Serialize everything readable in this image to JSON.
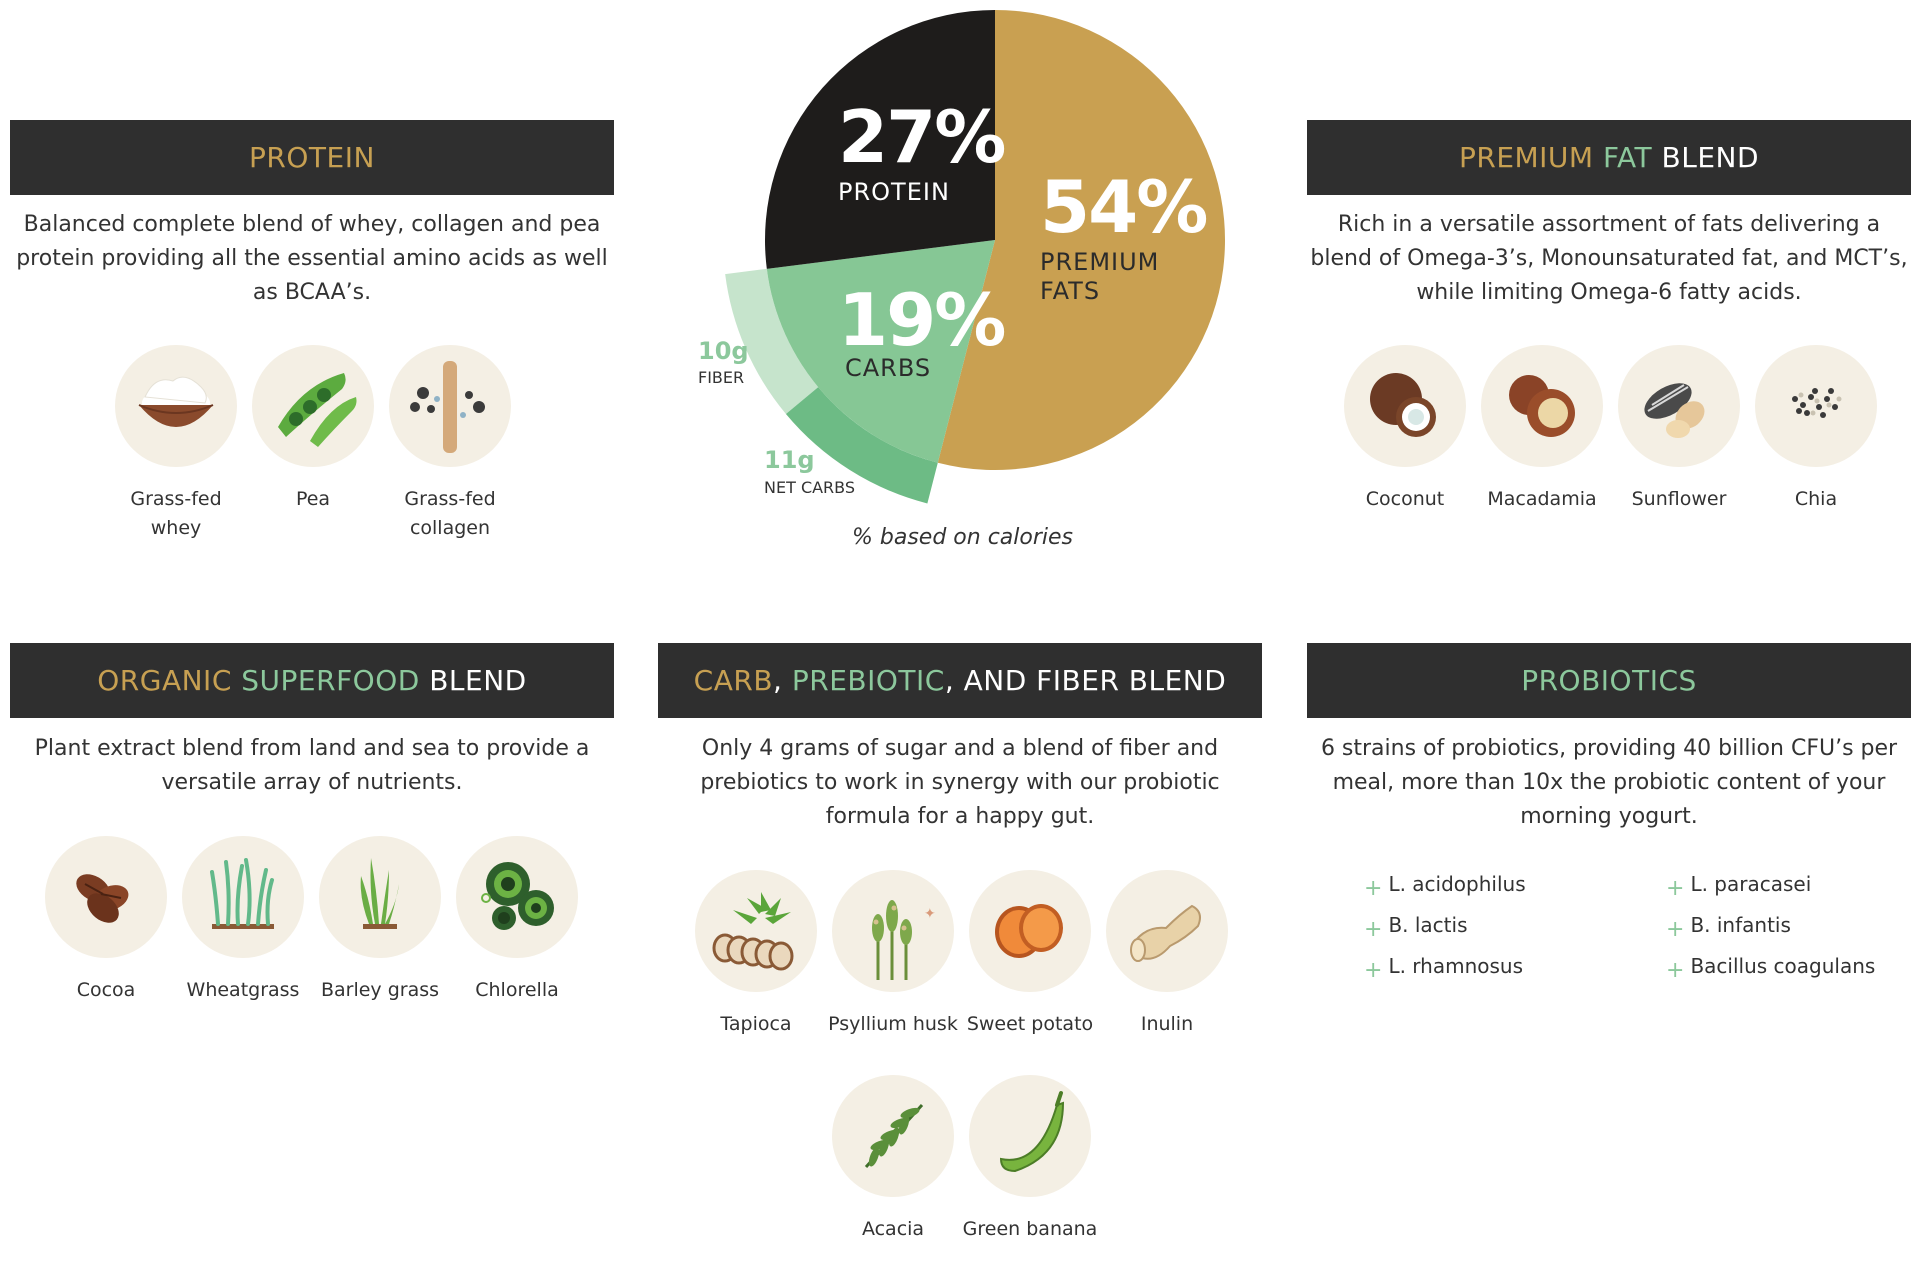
{
  "protein": {
    "title_parts": [
      {
        "text": "PROTEIN",
        "color": "gold"
      }
    ],
    "desc_lines": [
      "Balanced complete blend of whey, collagen and pea",
      "protein providing all the essential amino acids as well",
      "as BCAA’s."
    ],
    "items": [
      {
        "label": "Grass-fed\nwhey",
        "icon": "whey-bowl-icon"
      },
      {
        "label": "Pea",
        "icon": "pea-pod-icon"
      },
      {
        "label": "Grass-fed\ncollagen",
        "icon": "collagen-icon"
      }
    ]
  },
  "fats": {
    "title_parts": [
      {
        "text": "PREMIUM ",
        "color": "gold"
      },
      {
        "text": "FAT",
        "color": "green"
      },
      {
        "text": " BLEND",
        "color": "white"
      }
    ],
    "desc_lines": [
      "Rich in a versatile assortment of fats delivering a",
      "blend of Omega-3’s, Monounsaturated fat, and MCT’s,",
      "while limiting Omega-6 fatty acids."
    ],
    "items": [
      {
        "label": "Coconut",
        "icon": "coconut-icon"
      },
      {
        "label": "Macadamia",
        "icon": "macadamia-icon"
      },
      {
        "label": "Sunflower",
        "icon": "sunflower-seed-icon"
      },
      {
        "label": "Chia",
        "icon": "chia-seeds-icon"
      }
    ]
  },
  "superfood": {
    "title_parts": [
      {
        "text": "ORGANIC ",
        "color": "gold"
      },
      {
        "text": "SUPERFOOD",
        "color": "green"
      },
      {
        "text": " BLEND",
        "color": "white"
      }
    ],
    "desc_lines": [
      "Plant extract blend from land and sea to provide a",
      "versatile array of nutrients."
    ],
    "items": [
      {
        "label": "Cocoa",
        "icon": "cocoa-beans-icon"
      },
      {
        "label": "Wheatgrass",
        "icon": "wheatgrass-icon"
      },
      {
        "label": "Barley grass",
        "icon": "barley-grass-icon"
      },
      {
        "label": "Chlorella",
        "icon": "chlorella-icon"
      }
    ]
  },
  "carb": {
    "title_parts": [
      {
        "text": "CARB",
        "color": "gold"
      },
      {
        "text": ", ",
        "color": "white"
      },
      {
        "text": "PREBIOTIC",
        "color": "green"
      },
      {
        "text": ", AND FIBER BLEND",
        "color": "white"
      }
    ],
    "desc_lines": [
      "Only 4 grams of sugar and a blend of fiber and",
      "prebiotics to work in synergy with our probiotic",
      "formula for a happy gut."
    ],
    "items": [
      {
        "label": "Tapioca",
        "icon": "tapioca-icon"
      },
      {
        "label": "Psyllium husk",
        "icon": "psyllium-husk-icon"
      },
      {
        "label": "Sweet potato",
        "icon": "sweet-potato-icon"
      },
      {
        "label": "Inulin",
        "icon": "inulin-root-icon"
      },
      {
        "label": "Acacia",
        "icon": "acacia-leaf-icon"
      },
      {
        "label": "Green banana",
        "icon": "green-banana-icon"
      }
    ]
  },
  "probiotics": {
    "title_parts": [
      {
        "text": "PROBIOTICS",
        "color": "green"
      }
    ],
    "desc_lines": [
      "6 strains of probiotics, providing 40 billion CFU’s per",
      "meal, more than 10x the probiotic content of your",
      "morning yogurt."
    ],
    "strains": [
      "L. acidophilus",
      "L. paracasei",
      "B. lactis",
      "B. infantis",
      "L. rhamnosus",
      "Bacillus coagulans"
    ]
  },
  "colors": {
    "gold": "#c7a052",
    "green": "#8cc89c",
    "dark": "#1e1c1b",
    "header_bg": "#2f2f2f"
  },
  "chart_data": {
    "type": "pie",
    "slices": [
      {
        "label": "PREMIUM\nFATS",
        "value": 54,
        "display": "54%",
        "color": "#c9a051"
      },
      {
        "label": "CARBS",
        "value": 19,
        "display": "19%",
        "color": "#86c795"
      },
      {
        "label": "PROTEIN",
        "value": 27,
        "display": "27%",
        "color": "#1e1c1b"
      }
    ],
    "carb_breakdown": [
      {
        "amount": "10g",
        "label": "FIBER",
        "color": "#c6e4cc"
      },
      {
        "amount": "11g",
        "label": "NET CARBS",
        "color": "#6dbb85"
      }
    ],
    "caption": "% based on calories"
  }
}
